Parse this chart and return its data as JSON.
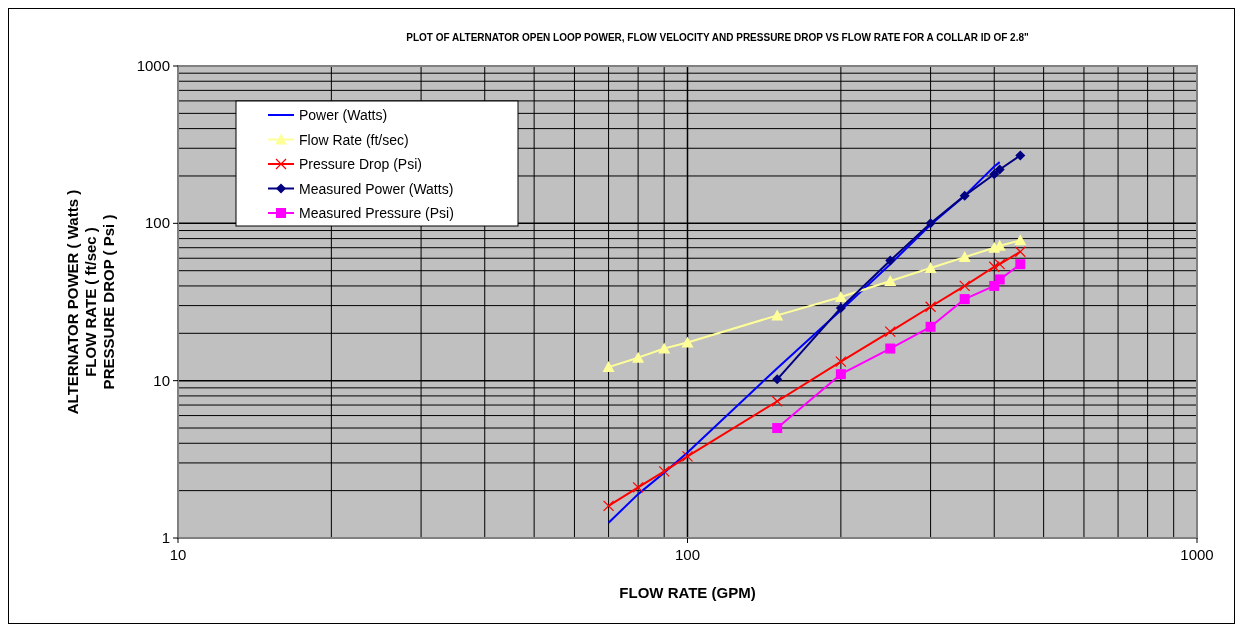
{
  "chart_data": {
    "type": "line",
    "title": "PLOT OF ALTERNATOR OPEN LOOP POWER, FLOW VELOCITY AND PRESSURE DROP VS FLOW RATE FOR A COLLAR ID OF 2.8\"",
    "xlabel": "FLOW RATE (GPM)",
    "ylabel": "ALTERNATOR POWER ( Watts )\nFLOW RATE ( ft/sec )\nPRESSURE DROP ( Psi )",
    "log": "xy",
    "xlim": [
      10,
      1000
    ],
    "ylim": [
      1,
      1000
    ],
    "xticks": [
      10,
      100,
      1000
    ],
    "yticks": [
      1,
      10,
      100,
      1000
    ],
    "grid": true,
    "legend": "top left",
    "series": [
      {
        "name": "Power (Watts)",
        "color": "#0000ff",
        "marker": "none",
        "x": [
          70,
          80,
          90,
          100,
          150,
          200,
          250,
          300,
          350,
          400,
          410
        ],
        "values": [
          1.25,
          1.9,
          2.6,
          3.5,
          12,
          28,
          55,
          98,
          150,
          230,
          245
        ]
      },
      {
        "name": "Flow Rate (ft/sec)",
        "color": "#ffff99",
        "marker": "triangle",
        "x": [
          70,
          80,
          90,
          100,
          150,
          200,
          250,
          300,
          350,
          400,
          410,
          450
        ],
        "values": [
          12.2,
          14,
          16,
          17.5,
          26,
          34,
          43,
          52,
          61,
          70,
          72,
          78
        ]
      },
      {
        "name": "Pressure Drop (Psi)",
        "color": "#ff0000",
        "marker": "cross",
        "x": [
          70,
          80,
          90,
          100,
          150,
          200,
          250,
          300,
          350,
          400,
          410,
          450
        ],
        "values": [
          1.6,
          2.1,
          2.65,
          3.3,
          7.4,
          13.2,
          20.5,
          29.5,
          40,
          53,
          55,
          66
        ]
      },
      {
        "name": "Measured Power (Watts)",
        "color": "#000080",
        "marker": "diamond",
        "x": [
          150,
          200,
          250,
          300,
          350,
          400,
          410,
          450
        ],
        "values": [
          10.2,
          29,
          58,
          100,
          150,
          205,
          220,
          270
        ]
      },
      {
        "name": "Measured Pressure (Psi)",
        "color": "#ff00ff",
        "marker": "square",
        "x": [
          150,
          200,
          250,
          300,
          350,
          400,
          410,
          450
        ],
        "values": [
          5,
          11,
          16,
          22,
          33,
          40,
          44,
          55
        ]
      }
    ]
  }
}
